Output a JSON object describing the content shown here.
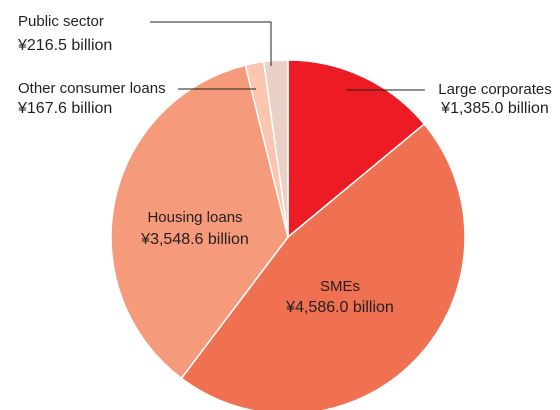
{
  "chart_data": {
    "type": "pie",
    "categories": [
      "Large corporates",
      "SMEs",
      "Housing loans",
      "Other consumer loans",
      "Public sector"
    ],
    "values": [
      1385.0,
      4586.0,
      3548.6,
      167.6,
      216.5
    ],
    "value_labels": [
      "¥1,385.0 billion",
      "¥4,586.0 billion",
      "¥3,548.6 billion",
      "¥167.6 billion",
      "¥216.5 billion"
    ],
    "colors": [
      "#ed1c24",
      "#f07052",
      "#f59a7a",
      "#fbc5b0",
      "#e9cfc5"
    ]
  }
}
